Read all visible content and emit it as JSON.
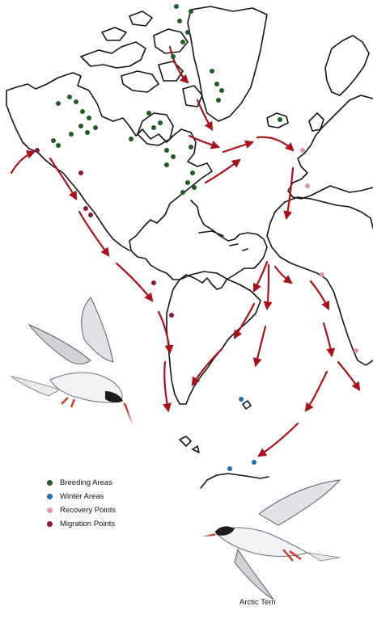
{
  "legend": {
    "items": [
      {
        "label": "Breeding Areas",
        "color": "#1f5e23"
      },
      {
        "label": "Winter Areas",
        "color": "#1f6fb2"
      },
      {
        "label": "Recovery Points",
        "color": "#e391b0"
      },
      {
        "label": "Migration Points",
        "color": "#8c1448"
      }
    ]
  },
  "caption": {
    "species": "Arctic Tern"
  },
  "colors": {
    "route_arrow": "#a8131b",
    "coastline": "#151515",
    "bird_body": "#f2f3f5",
    "bird_cap": "#1c1c1c",
    "bird_beak": "#c83a2c"
  },
  "icons": [
    "arctic-tern-illustration",
    "flight-route-arrow",
    "site-marker"
  ]
}
